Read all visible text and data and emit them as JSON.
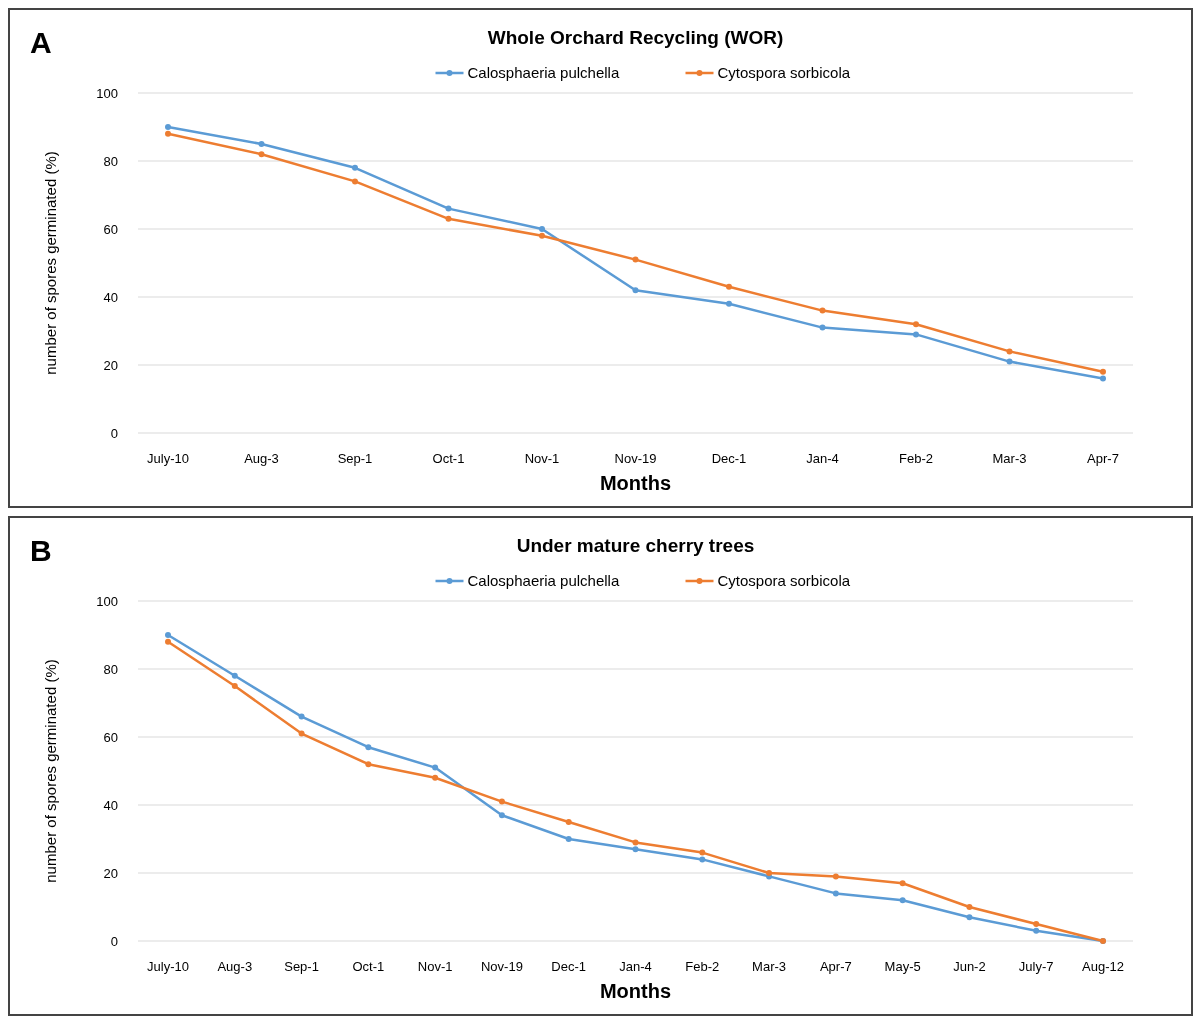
{
  "chart_data": [
    {
      "type": "line",
      "title": "Whole Orchard Recycling (WOR)",
      "xlabel": "Months",
      "ylabel": "number of spores germinated (%)",
      "annotations": [
        "A"
      ],
      "categories": [
        "July-10",
        "Aug-3",
        "Sep-1",
        "Oct-1",
        "Nov-1",
        "Nov-19",
        "Dec-1",
        "Jan-4",
        "Feb-2",
        "Mar-3",
        "Apr-7"
      ],
      "series": [
        {
          "name": "Calosphaeria pulchella",
          "color": "#5b9bd5",
          "values": [
            90,
            85,
            78,
            66,
            60,
            42,
            38,
            31,
            29,
            21,
            16
          ]
        },
        {
          "name": "Cytospora sorbicola",
          "color": "#ed7d31",
          "values": [
            88,
            82,
            74,
            63,
            58,
            51,
            43,
            36,
            32,
            24,
            18
          ]
        }
      ],
      "ylim": [
        0,
        100
      ],
      "yticks": [
        0,
        20,
        40,
        60,
        80,
        100
      ],
      "grid": "y",
      "legend": "top",
      "marker": "circle",
      "line_style": "solid"
    },
    {
      "type": "line",
      "title": "Under mature cherry trees",
      "xlabel": "Months",
      "ylabel": "number of spores germinated (%)",
      "annotations": [
        "B"
      ],
      "categories": [
        "July-10",
        "Aug-3",
        "Sep-1",
        "Oct-1",
        "Nov-1",
        "Nov-19",
        "Dec-1",
        "Jan-4",
        "Feb-2",
        "Mar-3",
        "Apr-7",
        "May-5",
        "Jun-2",
        "July-7",
        "Aug-12"
      ],
      "series": [
        {
          "name": "Calosphaeria pulchella",
          "color": "#5b9bd5",
          "values": [
            90,
            78,
            66,
            57,
            51,
            37,
            30,
            27,
            24,
            19,
            14,
            12,
            7,
            3,
            0
          ]
        },
        {
          "name": "Cytospora sorbicola",
          "color": "#ed7d31",
          "values": [
            88,
            75,
            61,
            52,
            48,
            41,
            35,
            29,
            26,
            20,
            19,
            17,
            10,
            5,
            0
          ]
        }
      ],
      "ylim": [
        0,
        100
      ],
      "yticks": [
        0,
        20,
        40,
        60,
        80,
        100
      ],
      "grid": "y",
      "legend": "top",
      "marker": "circle",
      "line_style": "solid"
    }
  ]
}
